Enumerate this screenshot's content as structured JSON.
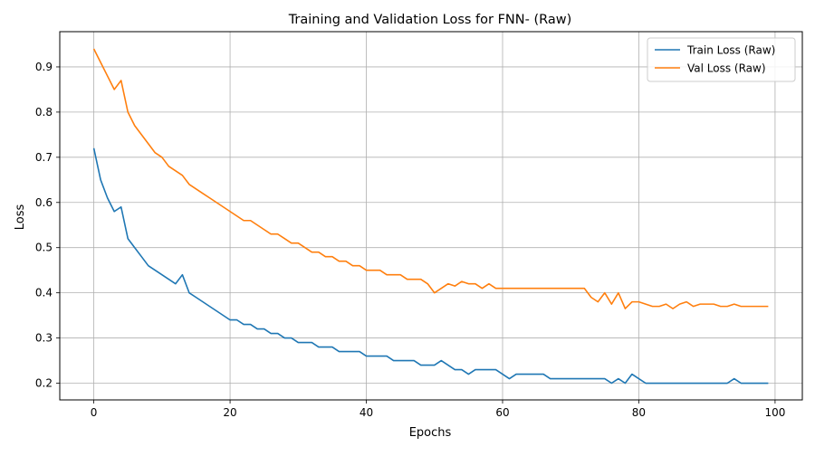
{
  "chart_data": {
    "type": "line",
    "title": "Training and Validation Loss for FNN- (Raw)",
    "xlabel": "Epochs",
    "ylabel": "Loss",
    "xlim": [
      -5,
      104
    ],
    "ylim": [
      0.163,
      0.978
    ],
    "xticks": [
      0,
      20,
      40,
      60,
      80,
      100
    ],
    "yticks": [
      0.2,
      0.3,
      0.4,
      0.5,
      0.6,
      0.7,
      0.8,
      0.9
    ],
    "grid": true,
    "legend_position": "top-right",
    "x": [
      0,
      1,
      2,
      3,
      4,
      5,
      6,
      7,
      8,
      9,
      10,
      11,
      12,
      13,
      14,
      15,
      16,
      17,
      18,
      19,
      20,
      21,
      22,
      23,
      24,
      25,
      26,
      27,
      28,
      29,
      30,
      31,
      32,
      33,
      34,
      35,
      36,
      37,
      38,
      39,
      40,
      41,
      42,
      43,
      44,
      45,
      46,
      47,
      48,
      49,
      50,
      51,
      52,
      53,
      54,
      55,
      56,
      57,
      58,
      59,
      60,
      61,
      62,
      63,
      64,
      65,
      66,
      67,
      68,
      69,
      70,
      71,
      72,
      73,
      74,
      75,
      76,
      77,
      78,
      79,
      80,
      81,
      82,
      83,
      84,
      85,
      86,
      87,
      88,
      89,
      90,
      91,
      92,
      93,
      94,
      95,
      96,
      97,
      98,
      99
    ],
    "series": [
      {
        "name": "Train Loss (Raw)",
        "color": "#1f77b4",
        "values": [
          0.72,
          0.65,
          0.61,
          0.58,
          0.59,
          0.52,
          0.5,
          0.48,
          0.46,
          0.45,
          0.44,
          0.43,
          0.42,
          0.44,
          0.4,
          0.39,
          0.38,
          0.37,
          0.36,
          0.35,
          0.34,
          0.34,
          0.33,
          0.33,
          0.32,
          0.32,
          0.31,
          0.31,
          0.3,
          0.3,
          0.29,
          0.29,
          0.29,
          0.28,
          0.28,
          0.28,
          0.27,
          0.27,
          0.27,
          0.27,
          0.26,
          0.26,
          0.26,
          0.26,
          0.25,
          0.25,
          0.25,
          0.25,
          0.24,
          0.24,
          0.24,
          0.25,
          0.24,
          0.23,
          0.23,
          0.22,
          0.23,
          0.23,
          0.23,
          0.23,
          0.22,
          0.21,
          0.22,
          0.22,
          0.22,
          0.22,
          0.22,
          0.21,
          0.21,
          0.21,
          0.21,
          0.21,
          0.21,
          0.21,
          0.21,
          0.21,
          0.2,
          0.21,
          0.2,
          0.22,
          0.21,
          0.2,
          0.2,
          0.2,
          0.2,
          0.2,
          0.2,
          0.2,
          0.2,
          0.2,
          0.2,
          0.2,
          0.2,
          0.2,
          0.21,
          0.2,
          0.2,
          0.2,
          0.2,
          0.2
        ]
      },
      {
        "name": "Val Loss (Raw)",
        "color": "#ff7f0e",
        "values": [
          0.94,
          0.91,
          0.88,
          0.85,
          0.87,
          0.8,
          0.77,
          0.75,
          0.73,
          0.71,
          0.7,
          0.68,
          0.67,
          0.66,
          0.64,
          0.63,
          0.62,
          0.61,
          0.6,
          0.59,
          0.58,
          0.57,
          0.56,
          0.56,
          0.55,
          0.54,
          0.53,
          0.53,
          0.52,
          0.51,
          0.51,
          0.5,
          0.49,
          0.49,
          0.48,
          0.48,
          0.47,
          0.47,
          0.46,
          0.46,
          0.45,
          0.45,
          0.45,
          0.44,
          0.44,
          0.44,
          0.43,
          0.43,
          0.43,
          0.42,
          0.4,
          0.41,
          0.42,
          0.415,
          0.425,
          0.42,
          0.42,
          0.41,
          0.42,
          0.41,
          0.41,
          0.41,
          0.41,
          0.41,
          0.41,
          0.41,
          0.41,
          0.41,
          0.41,
          0.41,
          0.41,
          0.41,
          0.41,
          0.39,
          0.38,
          0.4,
          0.375,
          0.4,
          0.365,
          0.38,
          0.38,
          0.375,
          0.37,
          0.37,
          0.375,
          0.365,
          0.375,
          0.38,
          0.37,
          0.375,
          0.375,
          0.375,
          0.37,
          0.37,
          0.375,
          0.37,
          0.37,
          0.37,
          0.37,
          0.37
        ]
      }
    ]
  }
}
